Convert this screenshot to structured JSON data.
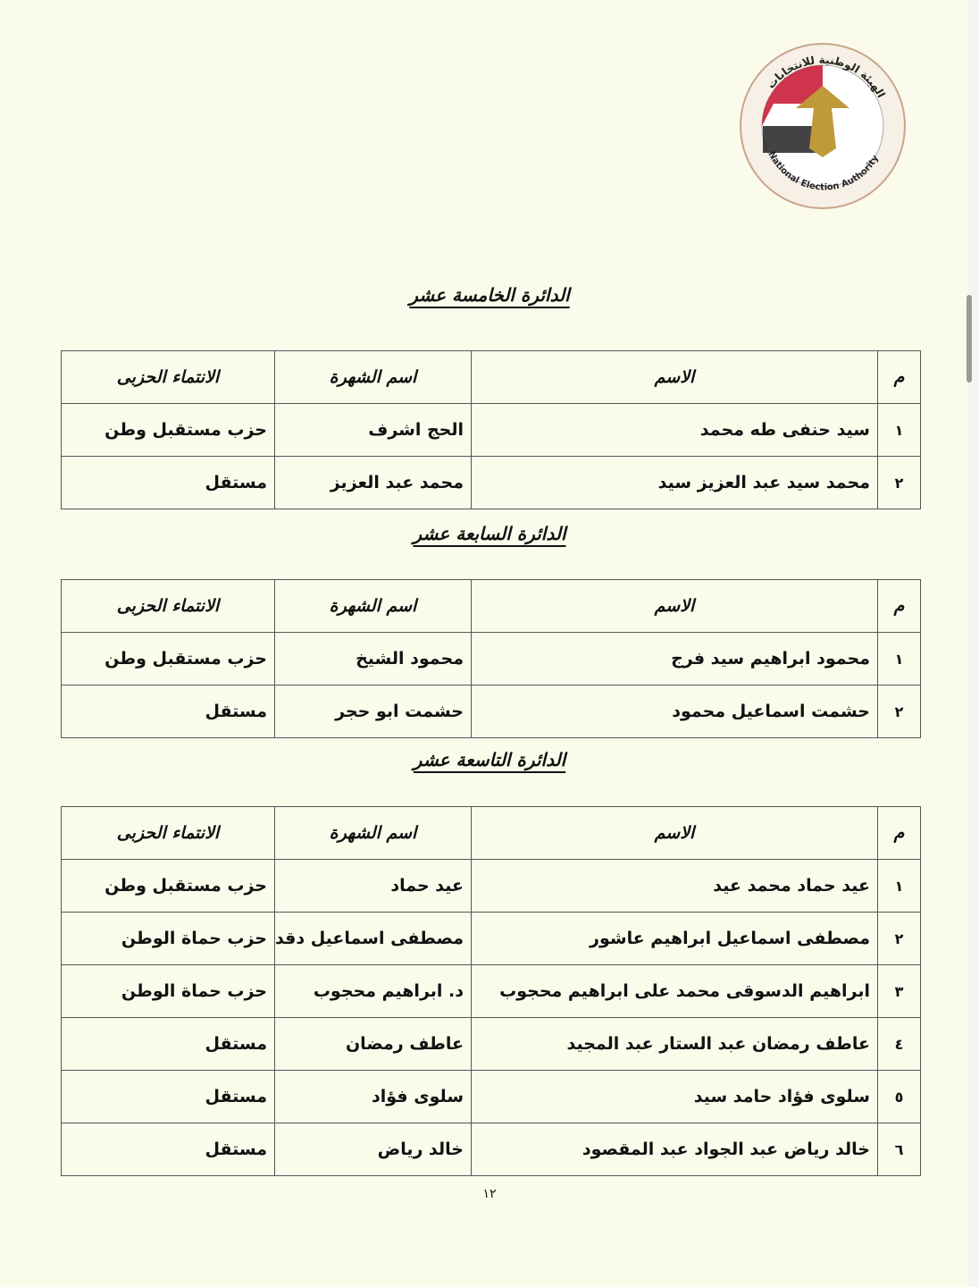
{
  "logo": {
    "text_ar": "الهيئة الوطنية للانتخابات",
    "text_en": "National Election Authority",
    "colors": [
      "#c8102e",
      "#ffffff",
      "#111111",
      "#c09a3a"
    ]
  },
  "headers": {
    "num": "م",
    "name": "الاسم",
    "nickname": "اسم الشهرة",
    "party": "الانتماء الحزبى"
  },
  "sections": [
    {
      "title": "الدائرة الخامسة عشر",
      "rows": [
        {
          "num": "١",
          "name": "سيد حنفى طه محمد",
          "nickname": "الحج اشرف",
          "party": "حزب مستقبل وطن"
        },
        {
          "num": "٢",
          "name": "محمد سيد عبد العزيز سيد",
          "nickname": "محمد عبد العزيز",
          "party": "مستقل"
        }
      ]
    },
    {
      "title": "الدائرة السابعة عشر",
      "rows": [
        {
          "num": "١",
          "name": "محمود ابراهيم سيد فرج",
          "nickname": "محمود الشيخ",
          "party": "حزب مستقبل وطن"
        },
        {
          "num": "٢",
          "name": "حشمت اسماعيل محمود",
          "nickname": "حشمت ابو حجر",
          "party": "مستقل"
        }
      ]
    },
    {
      "title": "الدائرة التاسعة عشر",
      "rows": [
        {
          "num": "١",
          "name": "عيد حماد محمد عيد",
          "nickname": "عيد حماد",
          "party": "حزب مستقبل وطن"
        },
        {
          "num": "٢",
          "name": "مصطفى اسماعيل ابراهيم عاشور",
          "nickname": "مصطفى اسماعيل دقدق",
          "party": "حزب حماة الوطن"
        },
        {
          "num": "٣",
          "name": "ابراهيم الدسوقى محمد على ابراهيم محجوب",
          "nickname": "د. ابراهيم محجوب",
          "party": "حزب حماة الوطن"
        },
        {
          "num": "٤",
          "name": "عاطف رمضان عبد الستار عبد المجيد",
          "nickname": "عاطف رمضان",
          "party": "مستقل"
        },
        {
          "num": "٥",
          "name": "سلوى فؤاد حامد سيد",
          "nickname": "سلوى فؤاد",
          "party": "مستقل"
        },
        {
          "num": "٦",
          "name": "خالد رياض عبد الجواد عبد المقصود",
          "nickname": "خالد رياض",
          "party": "مستقل"
        }
      ]
    }
  ],
  "page_number": "١٢"
}
